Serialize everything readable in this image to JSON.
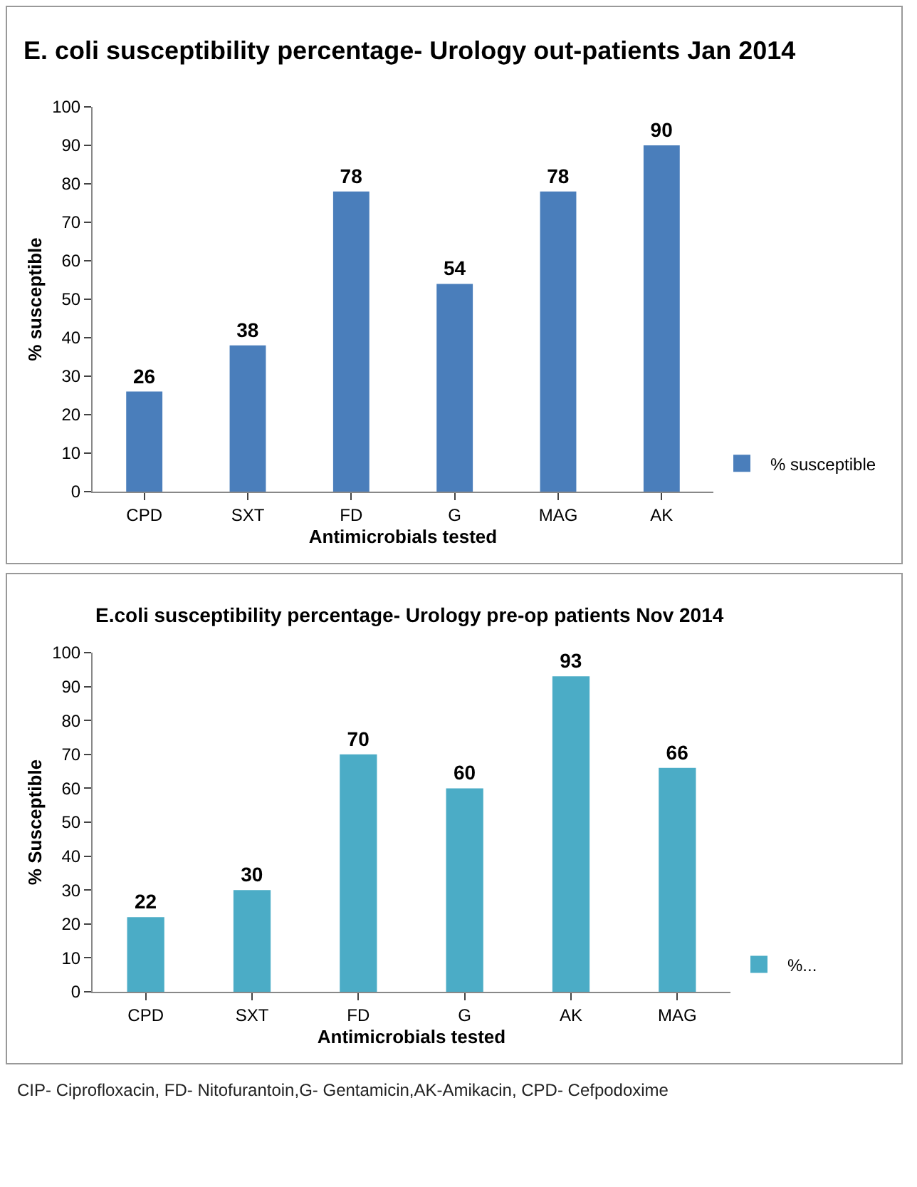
{
  "chart_data": [
    {
      "type": "bar",
      "title": "E. coli susceptibility percentage- Urology out-patients Jan 2014",
      "xlabel": "Antimicrobials tested",
      "ylabel": "% susceptible",
      "categories": [
        "CPD",
        "SXT",
        "FD",
        "G",
        "MAG",
        "AK"
      ],
      "series": [
        {
          "name": "% susceptible",
          "color": "#4a7ebb",
          "values": [
            26,
            38,
            78,
            54,
            78,
            90
          ]
        }
      ],
      "ylim": [
        0,
        100
      ],
      "yticks": [
        0,
        10,
        20,
        30,
        40,
        50,
        60,
        70,
        80,
        90,
        100
      ],
      "grid": false,
      "legend": "bottom right",
      "data_labels": true
    },
    {
      "type": "bar",
      "title": "E.coli susceptibility percentage- Urology pre-op patients Nov 2014",
      "xlabel": "Antimicrobials tested",
      "ylabel": "% Susceptible",
      "categories": [
        "CPD",
        "SXT",
        "FD",
        "G",
        "AK",
        "MAG"
      ],
      "series": [
        {
          "name": "%...",
          "color": "#4bacc6",
          "values": [
            22,
            30,
            70,
            60,
            93,
            66
          ]
        }
      ],
      "ylim": [
        0,
        100
      ],
      "yticks": [
        0,
        10,
        20,
        30,
        40,
        50,
        60,
        70,
        80,
        90,
        100
      ],
      "grid": false,
      "legend": "bottom right",
      "data_labels": true,
      "annotations": [
        "CIP- Ciprofloxacin, FD- Nitofurantoin,G- Gentamicin,AK-Amikacin, CPD- Cefpodoxime"
      ]
    }
  ]
}
